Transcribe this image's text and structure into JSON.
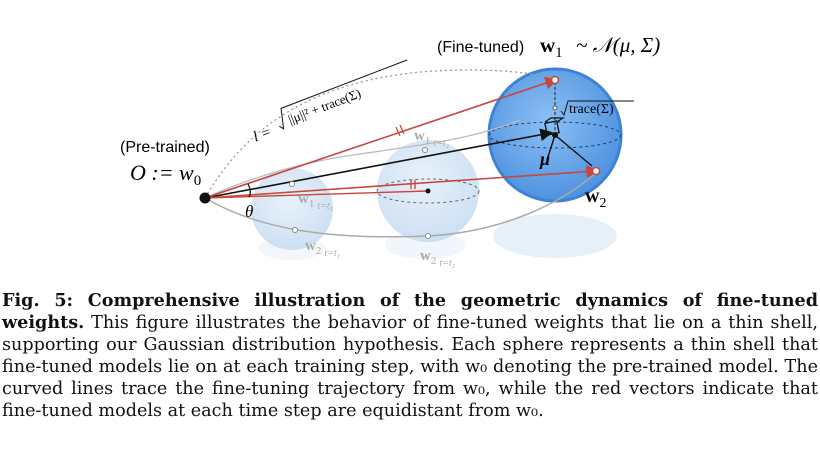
{
  "figure": {
    "labels": {
      "fine_tuned_prefix": "(Fine-tuned)",
      "fine_tuned_w": "w",
      "fine_tuned_sub": "1",
      "fine_tuned_dist": "~ 𝒩(μ, Σ)",
      "pretrained": "(Pre-trained)",
      "origin": "O := w",
      "origin_sub": "0",
      "length_formula_l": "l =",
      "length_formula_inner": "||μ||² + trace(Σ)",
      "radius_label": "trace(Σ)",
      "mu": "μ",
      "w2": "w",
      "w2_sub": "2",
      "theta": "θ",
      "w1_t1": "w",
      "w1_t1_sub": "1",
      "w1_t1_cond": "t=t₁",
      "w1_t2": "w",
      "w1_t2_sub": "1",
      "w1_t2_cond": "t=t₂",
      "w2_t1": "w",
      "w2_t1_sub": "2",
      "w2_t1_cond": "t=t₁",
      "w2_t2": "w",
      "w2_t2_sub": "2",
      "w2_t2_cond": "t=t₂"
    },
    "colors": {
      "red_vector": "#c8463c",
      "sphere_large": "#5d9fe8",
      "sphere_small": "#bcd6f0",
      "trajectory": "#999999"
    }
  },
  "caption": {
    "label": "Fig. 5: Comprehensive illustration of the geometric dynamics of fine-tuned weights.",
    "text": " This figure illustrates the behavior of fine-tuned weights that lie on a thin shell, supporting our Gaussian distribution hypothesis. Each sphere represents a thin shell that fine-tuned models lie on at each training step, with w₀ denoting the pre-trained model. The curved lines trace the fine-tuning trajectory from w₀, while the red vectors indicate that fine-tuned models at each time step are equidistant from w₀."
  }
}
